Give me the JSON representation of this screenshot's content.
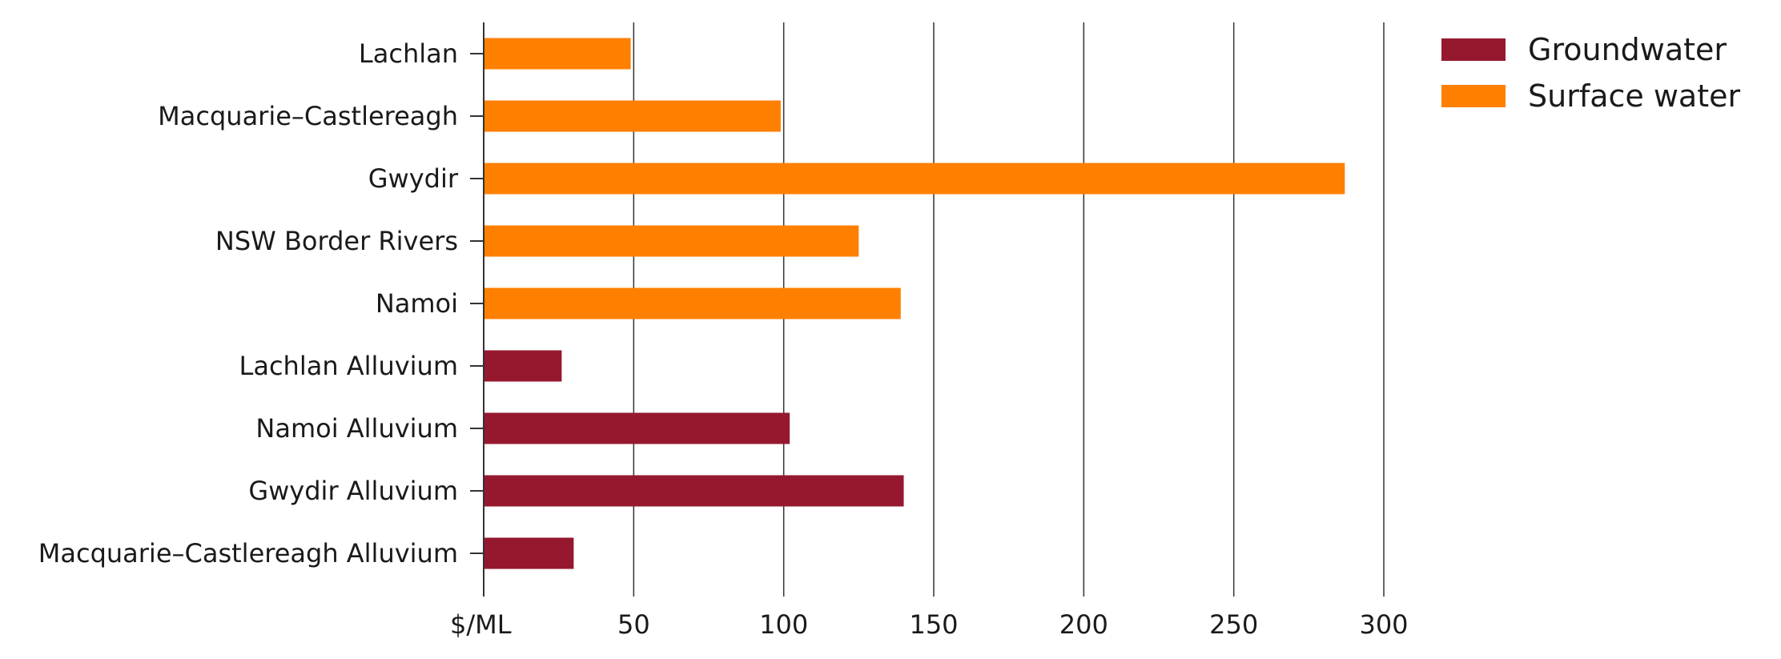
{
  "chart_data": {
    "type": "bar",
    "orientation": "horizontal",
    "categories": [
      "Lachlan",
      "Macquarie–Castlereagh",
      "Gwydir",
      "NSW Border Rivers",
      "Namoi",
      "Lachlan Alluvium",
      "Namoi Alluvium",
      "Gwydir Alluvium",
      "Macquarie–Castlereagh Alluvium"
    ],
    "values": [
      49,
      99,
      287,
      125,
      139,
      26,
      102,
      140,
      30
    ],
    "category_series": [
      "Surface water",
      "Surface water",
      "Surface water",
      "Surface water",
      "Surface water",
      "Groundwater",
      "Groundwater",
      "Groundwater",
      "Groundwater"
    ],
    "series": [
      {
        "name": "Groundwater",
        "color": "#96182f"
      },
      {
        "name": "Surface water",
        "color": "#ff7f00"
      }
    ],
    "xlabel": "$/ML",
    "xlim": [
      0,
      300
    ],
    "xticks": [
      0,
      50,
      100,
      150,
      200,
      250,
      300
    ],
    "xtick_labels": [
      "$/ML",
      "50",
      "100",
      "150",
      "200",
      "250",
      "300"
    ],
    "grid": "vertical",
    "legend_position": "top-right"
  }
}
